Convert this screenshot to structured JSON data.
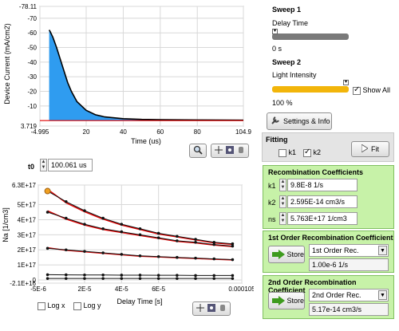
{
  "top_chart": {
    "ylabel": "Device Current (mA/cm2)",
    "xlabel": "Time (us)",
    "y_ticks": [
      "-78.11",
      "-70",
      "-60",
      "-50",
      "-40",
      "-30",
      "-20",
      "-10",
      "3.719"
    ],
    "x_ticks": [
      "-4.995",
      "20",
      "40",
      "60",
      "80",
      "104.9"
    ],
    "colors": {
      "fill": "#2f9cf0",
      "curve": "#000000",
      "baseline": "#e00000"
    }
  },
  "sweep1": {
    "title": "Sweep 1",
    "subtitle": "Delay Time",
    "value": "0 s",
    "slider_fill_fraction": 0.0
  },
  "sweep2": {
    "title": "Sweep 2",
    "subtitle": "Light Intensity",
    "value": "100 %",
    "slider_fill_fraction": 1.0,
    "show_all_label": "Show All",
    "show_all_checked": true
  },
  "settings_button": {
    "label": "Settings & Info"
  },
  "fitting": {
    "title": "Fitting",
    "k1_label": "k1",
    "k1_checked": false,
    "k2_label": "k2",
    "k2_checked": true,
    "fit_label": "Fit"
  },
  "t0": {
    "label": "t0",
    "value": "100.061 us"
  },
  "recomb": {
    "title": "Recombination Coefficients",
    "rows": [
      {
        "label": "k1",
        "value": "9.8E-8 1/s"
      },
      {
        "label": "k2",
        "value": "2.595E-14 cm3/s"
      },
      {
        "label": "ns",
        "value": "5.763E+17 1/cm3"
      }
    ]
  },
  "first_order": {
    "title": "1st Order Recombination Coefficient",
    "store_label": "Store",
    "select_value": "1st Order Rec.",
    "value": "1.00e-6 1/s"
  },
  "second_order": {
    "title": "2nd Order Recombination Coefficient",
    "store_label": "Store",
    "select_value": "2nd Order Rec.",
    "value": "5.17e-14 cm3/s"
  },
  "bottom_chart": {
    "ylabel": "Na [1/cm3]",
    "xlabel": "Delay Time [s]",
    "y_ticks": [
      "6.3E+17",
      "5E+17",
      "4E+17",
      "3E+17",
      "2E+17",
      "1E+17",
      "0",
      "-2.1E+16"
    ],
    "x_ticks": [
      "-5E-6",
      "2E-5",
      "4E-5",
      "6E-5",
      "0.000105"
    ],
    "log_x_label": "Log x",
    "log_y_label": "Log y",
    "log_x_checked": false,
    "log_y_checked": false
  },
  "chart_data": [
    {
      "type": "area",
      "xlabel": "Time (us)",
      "ylabel": "Device Current (mA/cm2)",
      "xlim": [
        -4.995,
        104.9
      ],
      "ylim": [
        3.719,
        -78.11
      ],
      "x_ticks": [
        -4.995,
        20,
        40,
        60,
        80,
        104.9
      ],
      "y_ticks": [
        -70,
        -60,
        -50,
        -40,
        -30,
        -20,
        -10
      ],
      "grid": true,
      "series": [
        {
          "x": [
            0,
            0.5,
            2,
            4,
            6,
            8,
            10,
            12,
            15,
            20,
            25,
            30,
            40,
            50,
            60,
            80,
            104.9
          ],
          "y": [
            -62,
            -61,
            -57,
            -50,
            -42,
            -34,
            -26,
            -20,
            -13,
            -7,
            -4,
            -2.5,
            -1.3,
            -0.8,
            -0.6,
            -0.4,
            -0.3
          ]
        }
      ]
    },
    {
      "type": "scatter",
      "xlabel": "Delay Time [s]",
      "ylabel": "Na [1/cm3]",
      "xlim": [
        -5e-06,
        0.000105
      ],
      "ylim": [
        -2.1e+16,
        6.3e+17
      ],
      "x_ticks": [
        -5e-06,
        2e-05,
        4e-05,
        6e-05,
        0.000105
      ],
      "y_ticks": [
        6.3e+17,
        5e+17,
        4e+17,
        3e+17,
        2e+17,
        1e+17,
        0,
        -2.1e+16
      ],
      "grid": true,
      "series": [
        {
          "x": [
            0,
            1e-05,
            2e-05,
            3e-05,
            4e-05,
            5e-05,
            6e-05,
            7e-05,
            8e-05,
            9e-05,
            0.0001
          ],
          "y": [
            5.9e+17,
            5.2e+17,
            4.6e+17,
            4.1e+17,
            3.7e+17,
            3.4e+17,
            3.1e+17,
            2.9e+17,
            2.7e+17,
            2.5e+17,
            2.4e+17
          ]
        },
        {
          "x": [
            0,
            1e-05,
            2e-05,
            3e-05,
            4e-05,
            5e-05,
            6e-05,
            7e-05,
            8e-05,
            9e-05,
            0.0001
          ],
          "y": [
            4.5e+17,
            4.1e+17,
            3.7e+17,
            3.4e+17,
            3.2e+17,
            3e+17,
            2.8e+17,
            2.6e+17,
            2.5e+17,
            2.35e+17,
            2.25e+17
          ]
        },
        {
          "x": [
            0,
            1e-05,
            2e-05,
            3e-05,
            4e-05,
            5e-05,
            6e-05,
            7e-05,
            8e-05,
            9e-05,
            0.0001
          ],
          "y": [
            2.1e+17,
            2e+17,
            1.9e+17,
            1.8e+17,
            1.7e+17,
            1.6e+17,
            1.55e+17,
            1.5e+17,
            1.45e+17,
            1.4e+17,
            1.35e+17
          ]
        },
        {
          "x": [
            0,
            1e-05,
            2e-05,
            3e-05,
            4e-05,
            5e-05,
            6e-05,
            7e-05,
            8e-05,
            9e-05,
            0.0001
          ],
          "y": [
            3.5e+16,
            3.4e+16,
            3.3e+16,
            3.3e+16,
            3.2e+16,
            3.2e+16,
            3.1e+16,
            3.1e+16,
            3e+16,
            3e+16,
            3e+16
          ]
        },
        {
          "x": [
            0,
            1e-05,
            2e-05,
            3e-05,
            4e-05,
            5e-05,
            6e-05,
            7e-05,
            8e-05,
            9e-05,
            0.0001
          ],
          "y": [
            1e+16,
            1e+16,
            1e+16,
            1e+16,
            1e+16,
            1e+16,
            1e+16,
            1e+16,
            1e+16,
            1e+16,
            1e+16
          ]
        }
      ]
    }
  ]
}
